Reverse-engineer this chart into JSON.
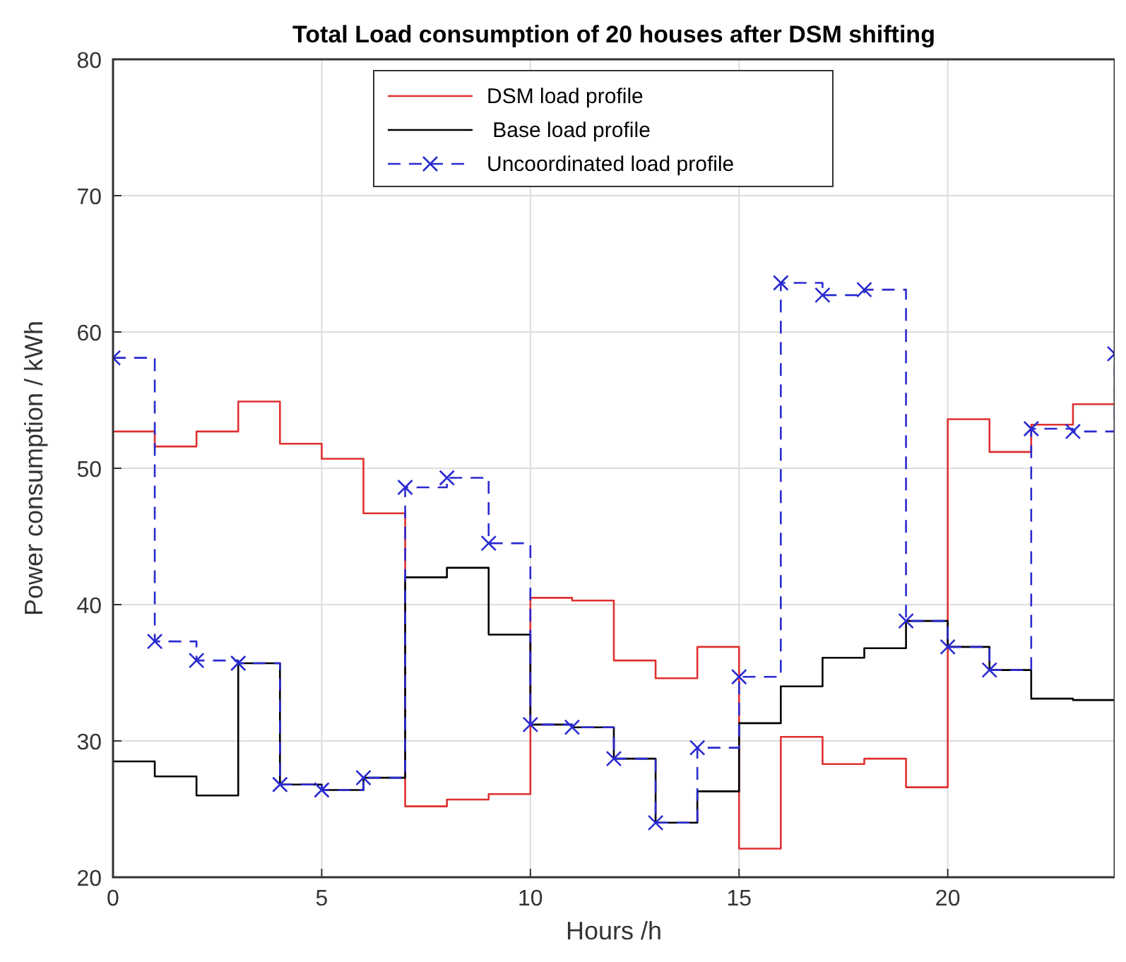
{
  "chart_data": {
    "type": "step",
    "title": "Total Load consumption of 20 houses after DSM shifting",
    "xlabel": "Hours /h",
    "ylabel": "Power consumption / kWh",
    "x": [
      0,
      1,
      2,
      3,
      4,
      5,
      6,
      7,
      8,
      9,
      10,
      11,
      12,
      13,
      14,
      15,
      16,
      17,
      18,
      19,
      20,
      21,
      22,
      23,
      24
    ],
    "xlim": [
      0,
      24
    ],
    "ylim": [
      20,
      80
    ],
    "xticks": [
      0,
      5,
      10,
      15,
      20
    ],
    "yticks": [
      20,
      30,
      40,
      50,
      60,
      70,
      80
    ],
    "grid": true,
    "legend": "top",
    "series": [
      {
        "name": "DSM load profile",
        "color": "#e03030",
        "line_style": "solid",
        "marker": "none",
        "values": [
          52.7,
          51.6,
          52.7,
          54.9,
          51.8,
          50.7,
          46.7,
          25.2,
          25.7,
          26.1,
          40.5,
          40.3,
          35.9,
          34.6,
          36.9,
          22.1,
          30.3,
          28.3,
          28.7,
          26.6,
          53.6,
          51.2,
          53.2,
          54.7,
          54.7
        ]
      },
      {
        "name": " Base load profile",
        "color": "#000000",
        "line_style": "solid",
        "marker": "none",
        "values": [
          28.5,
          27.4,
          26.0,
          35.7,
          26.8,
          26.4,
          27.3,
          42.0,
          42.7,
          37.8,
          31.2,
          31.0,
          28.7,
          24.0,
          26.3,
          31.3,
          34.0,
          36.1,
          36.8,
          38.8,
          36.9,
          35.2,
          33.1,
          33.0,
          33.0
        ]
      },
      {
        "name": "Uncoordinated load profile",
        "color": "#2a2ad0",
        "line_style": "dashed",
        "marker": "cross",
        "values": [
          58.1,
          37.3,
          35.9,
          35.7,
          26.8,
          26.4,
          27.3,
          48.6,
          49.3,
          44.5,
          31.2,
          31.0,
          28.7,
          24.0,
          29.5,
          34.7,
          63.6,
          62.7,
          63.1,
          38.8,
          36.9,
          35.2,
          52.9,
          52.7,
          58.4
        ]
      }
    ]
  }
}
